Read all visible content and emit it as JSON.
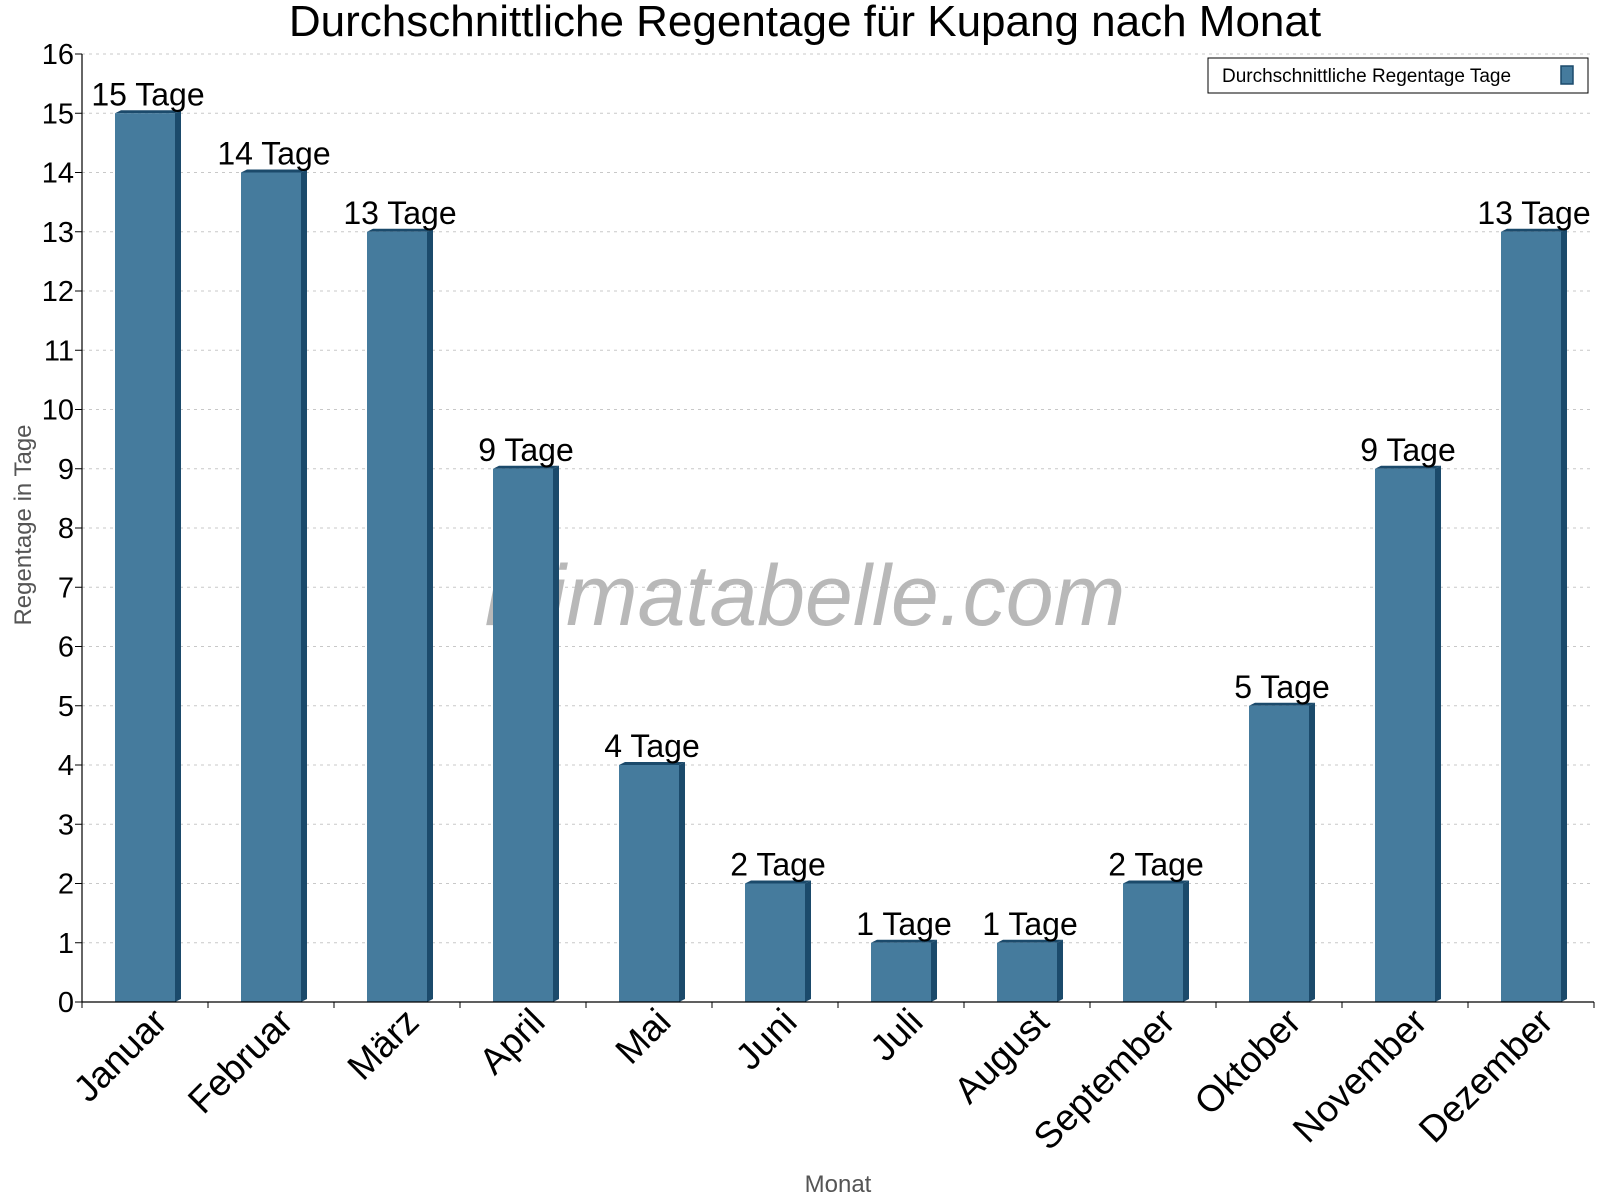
{
  "chart_data": {
    "type": "bar",
    "title": "Durchschnittliche Regentage für Kupang nach Monat",
    "xlabel": "Monat",
    "ylabel": "Regentage in Tage",
    "ylim": [
      0,
      16
    ],
    "yticks": [
      0,
      1,
      2,
      3,
      4,
      5,
      6,
      7,
      8,
      9,
      10,
      11,
      12,
      13,
      14,
      15,
      16
    ],
    "grid": true,
    "legend_position": "top-right",
    "categories": [
      "Januar",
      "Februar",
      "März",
      "April",
      "Mai",
      "Juni",
      "Juli",
      "August",
      "September",
      "Oktober",
      "November",
      "Dezember"
    ],
    "series": [
      {
        "name": "Durchschnittliche Regentage Tage",
        "color": "#457b9d",
        "values": [
          15,
          14,
          13,
          9,
          4,
          2,
          1,
          1,
          2,
          5,
          9,
          13
        ],
        "labels": [
          "15 Tage",
          "14 Tage",
          "13 Tage",
          "9 Tage",
          "4 Tage",
          "2 Tage",
          "1 Tage",
          "1 Tage",
          "2 Tage",
          "5 Tage",
          "9 Tage",
          "13 Tage"
        ]
      }
    ],
    "watermark": "klimatabelle.com"
  }
}
